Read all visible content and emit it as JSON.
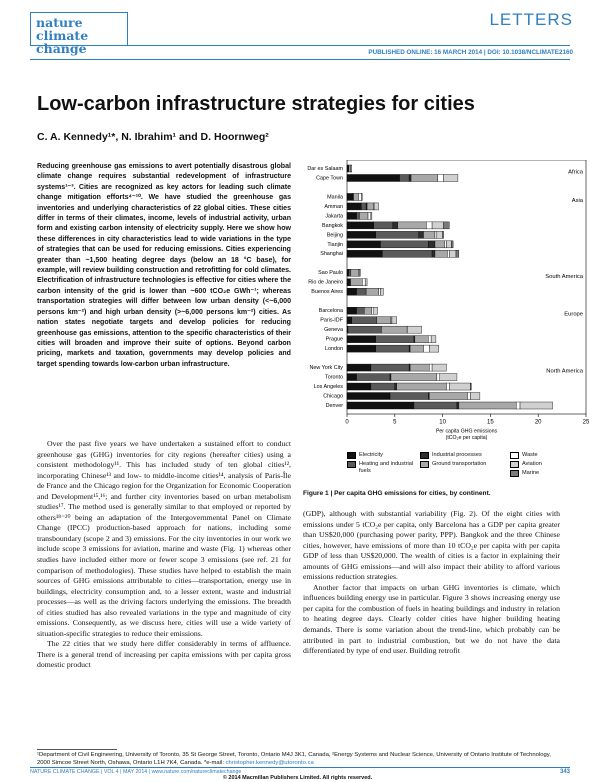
{
  "header": {
    "journal_line1": "nature",
    "journal_line2": "climate change",
    "section": "LETTERS",
    "published": "PUBLISHED ONLINE: 16 MARCH 2014 | DOI: 10.1038/NCLIMATE2160"
  },
  "article": {
    "title": "Low-carbon infrastructure strategies for cities",
    "authors": "C. A. Kennedy¹*, N. Ibrahim¹ and D. Hoornweg²",
    "abstract": "Reducing greenhouse gas emissions to avert potentially disastrous global climate change requires substantial redevelopment of infrastructure systems¹⁻³. Cities are recognized as key actors for leading such climate change mitigation efforts⁴⁻¹⁰. We have studied the greenhouse gas inventories and underlying characteristics of 22 global cities. These cities differ in terms of their climates, income, levels of industrial activity, urban form and existing carbon intensity of electricity supply. Here we show how these differences in city characteristics lead to wide variations in the type of strategies that can be used for reducing emissions. Cities experiencing greater than ~1,500 heating degree days (below an 18 °C base), for example, will review building construction and retrofitting for cold climates. Electrification of infrastructure technologies is effective for cities where the carbon intensity of the grid is lower than ~600 tCO₂e GWh⁻¹; whereas transportation strategies will differ between low urban density (<~6,000 persons km⁻²) and high urban density (>~6,000 persons km⁻²) cities. As nation states negotiate targets and develop policies for reducing greenhouse gas emissions, attention to the specific characteristics of their cities will broaden and improve their suite of options. Beyond carbon pricing, markets and taxation, governments may develop policies and target spending towards low-carbon urban infrastructure.",
    "body_left": [
      "Over the past five years we have undertaken a sustained effort to conduct greenhouse gas (GHG) inventories for city regions (hereafter cities) using a consistent methodology¹¹. This has included study of ten global cities¹², incorporating Chinese¹³ and low- to middle-income cities¹⁴, analysis of Paris-Île de France and the Chicago region for the Organization for Economic Cooperation and Development¹⁵,¹⁶; and further city inventories based on urban metabolism studies¹⁷. The method used is generally similar to that employed or reported by others¹⁸⁻²⁰ being an adaptation of the Intergovernmental Panel on Climate Change (IPCC) production-based approach for nations, including some transboundary (scope 2 and 3) emissions. For the city inventories in our work we include scope 3 emissions for aviation, marine and waste (Fig. 1) whereas other studies have included either more or fewer scope 3 emissions (see ref. 21 for comparison of methodologies). These studies have helped to establish the main sources of GHG emissions attributable to cities—transportation, energy use in buildings, electricity consumption and, to a lesser extent, waste and industrial processes—as well as the driving factors underlying the emissions. The breadth of cities studied has also revealed variations in the type and magnitude of city emissions. Consequently, as we discuss here, cities will use a wide variety of situation-specific strategies to reduce their emissions.",
      "The 22 cities that we study here differ considerably in terms of affluence. There is a general trend of increasing per capita emissions with per capita gross domestic product"
    ],
    "caption": "Figure 1 | Per capita GHG emissions for cities, by continent.",
    "body_right": [
      "(GDP), although with substantial variability (Fig. 2). Of the eight cities with emissions under 5 tCO₂e per capita, only Barcelona has a GDP per capita greater than US$20,000 (purchasing power parity, PPP). Bangkok and the three Chinese cities, however, have emissions of more than 10 tCO₂e per capita with per capita GDP of less than US$20,000. The wealth of cities is a factor in explaining their amounts of GHG emissions—and will also impact their ability to afford various emissions reduction strategies.",
      "Another factor that impacts on urban GHG inventories is climate, which influences building energy use in particular. Figure 3 shows increasing energy use per capita for the combustion of fuels in heating buildings and industry in relation to heating degree days. Clearly colder cities have higher building heating demands. There is some variation about the trend-line, which probably can be attributed in part to industrial combustion, but we do not have the data differentiated by type of end user. Building retrofit"
    ]
  },
  "footnote": {
    "affiliations": "¹Department of Civil Engineering, University of Toronto, 35 St George Street, Toronto, Ontario M4J 3K1, Canada, ²Energy Systems and Nuclear Science, University of Ontario Institute of Technology, 2000 Simcoe Street North, Oshawa, Ontario L1H 7K4, Canada. *e-mail: ",
    "email": "christopher.kennedy@utoronto.ca"
  },
  "footer": {
    "journal": "NATURE CLIMATE CHANGE | VOL 4 | MAY 2014 | www.nature.com/natureclimatechange",
    "page": "343",
    "copyright": "© 2014 Macmillan Publishers Limited. All rights reserved."
  },
  "chart_data": {
    "type": "stacked-bar-horizontal",
    "categories": [
      "Dar es Salaam",
      "Cape Town",
      null,
      "Manila",
      "Amman",
      "Jakarta",
      "Bangkok",
      "Beijing",
      "Tianjin",
      "Shanghai",
      null,
      "Sao Paulo",
      "Rio de Janeiro",
      "Buenos Aires",
      null,
      "Barcelona",
      "Paris-IDF",
      "Geneva",
      "Prague",
      "London",
      null,
      "New York City",
      "Toronto",
      "Los Angeles",
      "Chicago",
      "Denver"
    ],
    "groups": [
      "Africa",
      "Asia",
      "South America",
      "Europe",
      "North America"
    ],
    "series": [
      {
        "name": "Electricity",
        "color": "#111111",
        "values": [
          0.2,
          5.5,
          null,
          0.6,
          1.5,
          1.0,
          2.8,
          3.0,
          3.5,
          3.7,
          null,
          0.2,
          0.3,
          1.0,
          null,
          1.0,
          0.5,
          0.1,
          3.0,
          3.0,
          null,
          2.5,
          1.0,
          2.5,
          4.5,
          7.0
        ]
      },
      {
        "name": "Heating and industrial fuels",
        "color": "#5a5a5a",
        "values": [
          0,
          1.0,
          null,
          0.1,
          0.5,
          0.3,
          2.0,
          4.5,
          5.0,
          5.2,
          null,
          0.2,
          0.1,
          1.0,
          null,
          0.8,
          2.6,
          3.5,
          4.0,
          3.5,
          null,
          4.0,
          3.5,
          2.5,
          4.0,
          4.5
        ]
      },
      {
        "name": "Industrial processes",
        "color": "#2e2e2e",
        "values": [
          0,
          0.2,
          null,
          0,
          0.1,
          0,
          0.5,
          0.5,
          0.7,
          0.3,
          null,
          0,
          0,
          0,
          null,
          0,
          0,
          0,
          0.1,
          0.1,
          null,
          0.1,
          0.1,
          0.2,
          0.1,
          0.2
        ]
      },
      {
        "name": "Ground transportation",
        "color": "#a8a8a8",
        "values": [
          0.2,
          2.8,
          null,
          0.5,
          0.7,
          0.9,
          3.0,
          1.2,
          1.0,
          1.3,
          null,
          0.8,
          1.2,
          1.3,
          null,
          0.8,
          1.5,
          2.6,
          1.4,
          1.4,
          null,
          2.0,
          4.8,
          5.2,
          4.0,
          6.0
        ]
      },
      {
        "name": "Waste",
        "color": "#ffffff",
        "values": [
          0,
          0.6,
          null,
          0.3,
          0.1,
          0.3,
          0.6,
          0.2,
          0.2,
          0.2,
          null,
          0.1,
          0.3,
          0.2,
          null,
          0.2,
          0.1,
          0.1,
          0.3,
          0.6,
          null,
          0.3,
          0.3,
          0.3,
          0.3,
          0.4
        ]
      },
      {
        "name": "Aviation",
        "color": "#d0d0d0",
        "values": [
          0.1,
          1.5,
          null,
          0.1,
          0.4,
          0.1,
          1.2,
          0.6,
          0.5,
          0.7,
          null,
          0.1,
          0.2,
          0.3,
          null,
          0.4,
          0.5,
          1.5,
          0.5,
          1.0,
          null,
          1.5,
          1.8,
          2.2,
          1.0,
          3.4
        ]
      },
      {
        "name": "Marine",
        "color": "#7a7a7a",
        "values": [
          0,
          0,
          null,
          0,
          0,
          0,
          0.6,
          0.1,
          0.2,
          0.3,
          null,
          0,
          0,
          0,
          null,
          0,
          0,
          0,
          0,
          0,
          null,
          0,
          0,
          0.1,
          0,
          0
        ]
      }
    ],
    "xlim": [
      0,
      25
    ],
    "xticks": [
      0,
      5,
      10,
      15,
      20,
      25
    ],
    "x_label": [
      "Per capita GHG emissions",
      "(tCO₂e per capita)"
    ]
  }
}
